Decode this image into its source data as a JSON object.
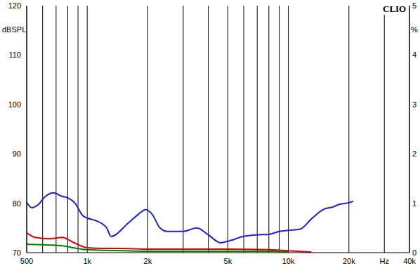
{
  "chart_data": {
    "type": "line",
    "title": "CLIO",
    "y_label": "dBSPL",
    "y2_label": "%",
    "log": "x",
    "grid": true,
    "tick_labels": true,
    "xlim": [
      500,
      40000
    ],
    "xticks": [
      500,
      {
        "value": 600,
        "label": null
      },
      {
        "value": 700,
        "label": null
      },
      {
        "value": 800,
        "label": null
      },
      {
        "value": 900,
        "label": null
      },
      {
        "value": 1000,
        "label": "1k"
      },
      {
        "value": 2000,
        "label": "2k"
      },
      {
        "value": 3000,
        "label": null
      },
      {
        "value": 4000,
        "label": null
      },
      {
        "value": 5000,
        "label": "5k"
      },
      {
        "value": 6000,
        "label": null
      },
      {
        "value": 7000,
        "label": null
      },
      {
        "value": 8000,
        "label": null
      },
      {
        "value": 9000,
        "label": null
      },
      {
        "value": 10000,
        "label": "10k"
      },
      {
        "value": 20000,
        "label": "20k"
      },
      {
        "value": 30000,
        "label": "Hz"
      },
      {
        "value": 40000,
        "label": "40k"
      }
    ],
    "ylim": [
      70,
      120
    ],
    "yticks": [
      70,
      {
        "value": 75,
        "label": null
      },
      80,
      90,
      100,
      110,
      120
    ],
    "y2lim": [
      0,
      5
    ],
    "y2ticks": [
      0,
      1,
      2,
      3,
      4,
      5
    ],
    "series": [
      {
        "color": "#1f1fd8",
        "axis": "y",
        "x": [
          500,
          530,
          570,
          620,
          680,
          750,
          800,
          870,
          950,
          1000,
          1100,
          1250,
          1312,
          1600,
          1800,
          1950,
          2100,
          2300,
          2500,
          3000,
          3500,
          4000,
          4600,
          5000,
          6000,
          7000,
          8000,
          9000,
          10000,
          11500,
          13000,
          15000,
          16500,
          18000,
          20000,
          21000
        ],
        "values": [
          80.2,
          79.1,
          79.7,
          81.4,
          82.1,
          81.4,
          81.1,
          80,
          77.5,
          77,
          76.5,
          75,
          73.3,
          76,
          77.8,
          78.7,
          77.8,
          75,
          74.3,
          74.3,
          75,
          73.6,
          72,
          72.3,
          73.3,
          73.6,
          73.7,
          74.3,
          74.5,
          74.8,
          76.8,
          78.8,
          79.2,
          79.8,
          80.1,
          80.4
        ]
      },
      {
        "color": "#e00000",
        "axis": "y2",
        "x": [
          500,
          550,
          650,
          750,
          850,
          1000,
          1200,
          1500,
          2000,
          3000,
          5000,
          8000,
          12000,
          13000
        ],
        "values": [
          0.4,
          0.31,
          0.28,
          0.31,
          0.21,
          0.1,
          0.085,
          0.085,
          0.07,
          0.07,
          0.07,
          0.06,
          0.02,
          0.015
        ]
      },
      {
        "color": "#008000",
        "axis": "y2",
        "x": [
          500,
          600,
          750,
          850,
          1000,
          1500,
          2000,
          5000,
          8000,
          10000
        ],
        "values": [
          0.17,
          0.16,
          0.14,
          0.1,
          0.06,
          0.04,
          0.03,
          0.03,
          0.03,
          0.02
        ]
      }
    ]
  }
}
